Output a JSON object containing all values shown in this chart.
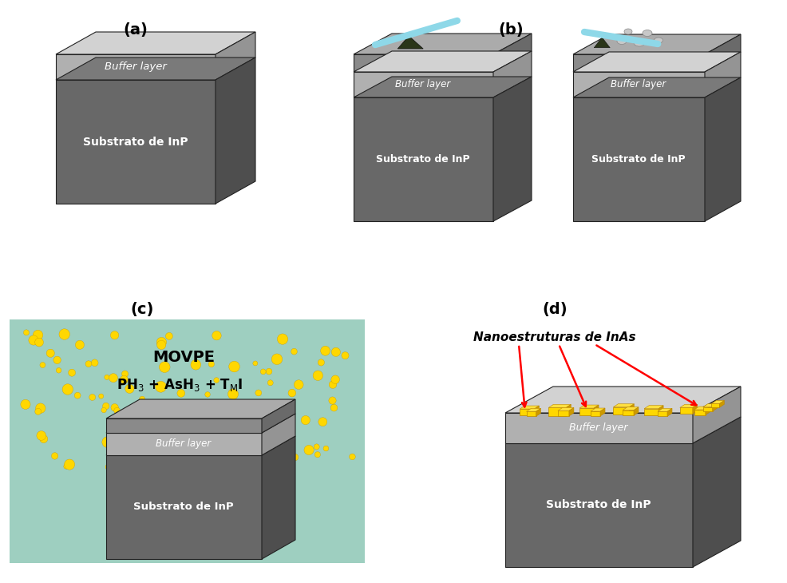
{
  "bg_color": "#ffffff",
  "sub_face": "#686868",
  "sub_top": "#7a7a7a",
  "sub_side": "#4e4e4e",
  "buf_face": "#b0b0b0",
  "buf_top": "#d2d2d2",
  "buf_side": "#949494",
  "res_face": "#8a8a8a",
  "res_top": "#ababab",
  "res_side": "#6a6a6a",
  "needle_color": "#8ed8e8",
  "notch_color": "#2a3518",
  "hole_color": "#d0d0d0",
  "dot_color": "#FFD700",
  "teal_color": "#9ecfc0",
  "text_substrate": "Substrato de InP",
  "text_buffer": "Buffer layer",
  "text_movpe": "MOVPE",
  "text_nano": "Nanoestruturas de InAs"
}
